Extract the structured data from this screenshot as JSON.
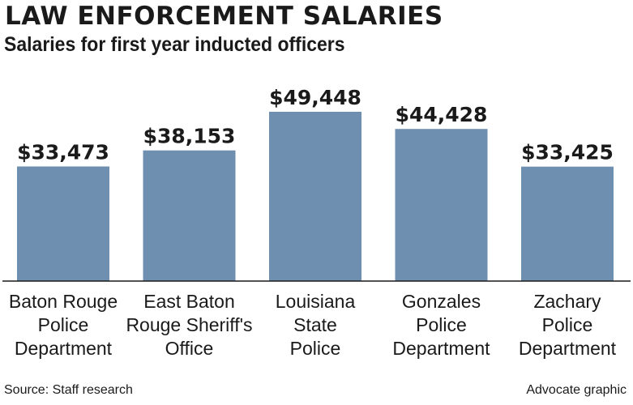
{
  "header": {
    "title": "LAW ENFORCEMENT SALARIES",
    "subtitle": "Salaries for first year inducted officers"
  },
  "footer": {
    "source": "Source: Staff research",
    "credit": "Advocate graphic"
  },
  "colors": {
    "bar": "#6f8fb0",
    "axis": "#1a1a1a",
    "text": "#1a1a1a"
  },
  "chart_data": {
    "type": "bar",
    "title": "LAW ENFORCEMENT SALARIES",
    "subtitle": "Salaries for first year inducted officers",
    "categories": [
      [
        "Baton Rouge",
        "Police",
        "Department"
      ],
      [
        "East Baton",
        "Rouge Sheriff's",
        "Office"
      ],
      [
        "Louisiana",
        "State",
        "Police"
      ],
      [
        "Gonzales",
        "Police",
        "Department"
      ],
      [
        "Zachary",
        "Police",
        "Department"
      ]
    ],
    "values": [
      33473,
      38153,
      49448,
      44428,
      33425
    ],
    "value_labels": [
      "$33,473",
      "$38,153",
      "$49,448",
      "$44,428",
      "$33,425"
    ],
    "ylim": [
      0,
      49448
    ],
    "grid": false,
    "legend": "none"
  }
}
